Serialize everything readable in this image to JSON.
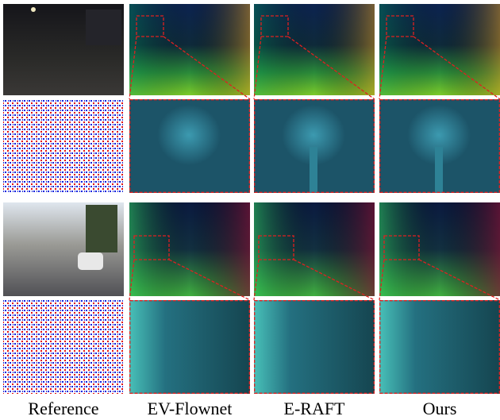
{
  "columns": [
    "Reference",
    "EV-Flownet",
    "E-RAFT",
    "Ours"
  ]
}
